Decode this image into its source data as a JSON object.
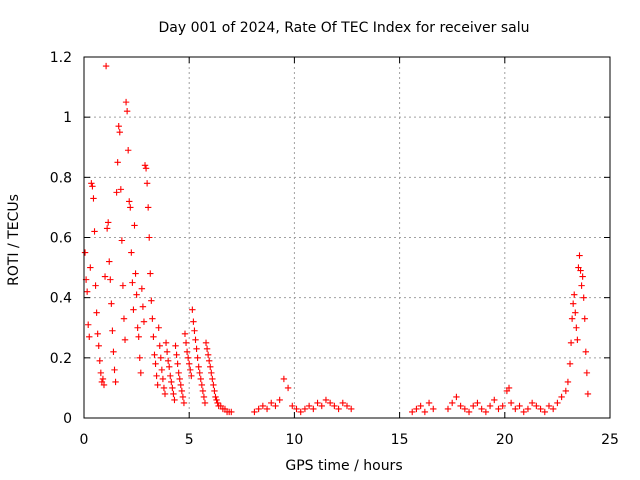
{
  "chart_data": {
    "type": "scatter",
    "title": "Day 001 of 2024, Rate Of TEC Index for receiver salu",
    "xlabel": "GPS time / hours",
    "ylabel": "ROTI / TECUs",
    "xlim": [
      0,
      25
    ],
    "ylim": [
      0,
      1.2
    ],
    "x_ticks": [
      0,
      5,
      10,
      15,
      20,
      25
    ],
    "x_tick_labels": [
      "0",
      "5",
      "10",
      "15",
      "20",
      "25"
    ],
    "y_ticks": [
      0,
      0.2,
      0.4,
      0.6,
      0.8,
      1.0,
      1.2
    ],
    "y_tick_labels": [
      "0",
      "0.2",
      "0.4",
      "0.6",
      "0.8",
      "1",
      "1.2"
    ],
    "grid": true,
    "marker": "+",
    "color": "#ff0000",
    "series": [
      {
        "name": "ROTI",
        "points": [
          [
            0.05,
            0.55
          ],
          [
            0.1,
            0.46
          ],
          [
            0.15,
            0.42
          ],
          [
            0.2,
            0.31
          ],
          [
            0.25,
            0.27
          ],
          [
            0.3,
            0.5
          ],
          [
            0.35,
            0.78
          ],
          [
            0.4,
            0.77
          ],
          [
            0.45,
            0.73
          ],
          [
            0.5,
            0.62
          ],
          [
            0.55,
            0.44
          ],
          [
            0.6,
            0.35
          ],
          [
            0.65,
            0.28
          ],
          [
            0.7,
            0.24
          ],
          [
            0.75,
            0.19
          ],
          [
            0.8,
            0.15
          ],
          [
            0.85,
            0.12
          ],
          [
            0.9,
            0.13
          ],
          [
            0.95,
            0.11
          ],
          [
            1.0,
            0.47
          ],
          [
            1.05,
            1.17
          ],
          [
            1.1,
            0.63
          ],
          [
            1.15,
            0.65
          ],
          [
            1.2,
            0.52
          ],
          [
            1.25,
            0.46
          ],
          [
            1.3,
            0.38
          ],
          [
            1.35,
            0.29
          ],
          [
            1.4,
            0.22
          ],
          [
            1.45,
            0.16
          ],
          [
            1.5,
            0.12
          ],
          [
            1.55,
            0.75
          ],
          [
            1.6,
            0.85
          ],
          [
            1.65,
            0.97
          ],
          [
            1.7,
            0.95
          ],
          [
            1.75,
            0.76
          ],
          [
            1.8,
            0.59
          ],
          [
            1.85,
            0.44
          ],
          [
            1.9,
            0.33
          ],
          [
            1.95,
            0.26
          ],
          [
            2.0,
            1.05
          ],
          [
            2.05,
            1.02
          ],
          [
            2.1,
            0.89
          ],
          [
            2.15,
            0.72
          ],
          [
            2.2,
            0.7
          ],
          [
            2.25,
            0.55
          ],
          [
            2.3,
            0.45
          ],
          [
            2.35,
            0.36
          ],
          [
            2.4,
            0.64
          ],
          [
            2.45,
            0.48
          ],
          [
            2.5,
            0.41
          ],
          [
            2.55,
            0.3
          ],
          [
            2.6,
            0.27
          ],
          [
            2.65,
            0.2
          ],
          [
            2.7,
            0.15
          ],
          [
            2.75,
            0.43
          ],
          [
            2.8,
            0.37
          ],
          [
            2.85,
            0.32
          ],
          [
            2.9,
            0.84
          ],
          [
            2.95,
            0.83
          ],
          [
            3.0,
            0.78
          ],
          [
            3.05,
            0.7
          ],
          [
            3.1,
            0.6
          ],
          [
            3.15,
            0.48
          ],
          [
            3.2,
            0.39
          ],
          [
            3.25,
            0.33
          ],
          [
            3.3,
            0.27
          ],
          [
            3.35,
            0.21
          ],
          [
            3.4,
            0.18
          ],
          [
            3.45,
            0.14
          ],
          [
            3.5,
            0.11
          ],
          [
            3.55,
            0.3
          ],
          [
            3.6,
            0.24
          ],
          [
            3.65,
            0.2
          ],
          [
            3.7,
            0.16
          ],
          [
            3.75,
            0.13
          ],
          [
            3.8,
            0.1
          ],
          [
            3.85,
            0.08
          ],
          [
            3.9,
            0.25
          ],
          [
            3.95,
            0.22
          ],
          [
            4.0,
            0.19
          ],
          [
            4.05,
            0.17
          ],
          [
            4.1,
            0.14
          ],
          [
            4.15,
            0.12
          ],
          [
            4.2,
            0.1
          ],
          [
            4.25,
            0.08
          ],
          [
            4.3,
            0.06
          ],
          [
            4.35,
            0.24
          ],
          [
            4.4,
            0.21
          ],
          [
            4.45,
            0.18
          ],
          [
            4.5,
            0.15
          ],
          [
            4.55,
            0.13
          ],
          [
            4.6,
            0.11
          ],
          [
            4.65,
            0.09
          ],
          [
            4.7,
            0.07
          ],
          [
            4.75,
            0.05
          ],
          [
            4.8,
            0.28
          ],
          [
            4.85,
            0.25
          ],
          [
            4.9,
            0.22
          ],
          [
            4.95,
            0.2
          ],
          [
            5.0,
            0.18
          ],
          [
            5.05,
            0.16
          ],
          [
            5.1,
            0.14
          ],
          [
            5.15,
            0.36
          ],
          [
            5.2,
            0.32
          ],
          [
            5.25,
            0.29
          ],
          [
            5.3,
            0.26
          ],
          [
            5.35,
            0.23
          ],
          [
            5.4,
            0.2
          ],
          [
            5.45,
            0.17
          ],
          [
            5.5,
            0.15
          ],
          [
            5.55,
            0.13
          ],
          [
            5.6,
            0.11
          ],
          [
            5.65,
            0.09
          ],
          [
            5.7,
            0.07
          ],
          [
            5.75,
            0.05
          ],
          [
            5.8,
            0.25
          ],
          [
            5.85,
            0.23
          ],
          [
            5.9,
            0.21
          ],
          [
            5.95,
            0.19
          ],
          [
            6.0,
            0.17
          ],
          [
            6.05,
            0.15
          ],
          [
            6.1,
            0.13
          ],
          [
            6.15,
            0.11
          ],
          [
            6.2,
            0.09
          ],
          [
            6.25,
            0.07
          ],
          [
            6.3,
            0.06
          ],
          [
            6.35,
            0.05
          ],
          [
            6.4,
            0.04
          ],
          [
            6.5,
            0.04
          ],
          [
            6.6,
            0.03
          ],
          [
            6.7,
            0.03
          ],
          [
            6.8,
            0.02
          ],
          [
            6.9,
            0.02
          ],
          [
            7.0,
            0.02
          ],
          [
            8.1,
            0.02
          ],
          [
            8.3,
            0.03
          ],
          [
            8.5,
            0.04
          ],
          [
            8.7,
            0.03
          ],
          [
            8.9,
            0.05
          ],
          [
            9.1,
            0.04
          ],
          [
            9.3,
            0.06
          ],
          [
            9.5,
            0.13
          ],
          [
            9.7,
            0.1
          ],
          [
            9.9,
            0.04
          ],
          [
            10.1,
            0.03
          ],
          [
            10.3,
            0.02
          ],
          [
            10.5,
            0.03
          ],
          [
            10.7,
            0.04
          ],
          [
            10.9,
            0.03
          ],
          [
            11.1,
            0.05
          ],
          [
            11.3,
            0.04
          ],
          [
            11.5,
            0.06
          ],
          [
            11.7,
            0.05
          ],
          [
            11.9,
            0.04
          ],
          [
            12.1,
            0.03
          ],
          [
            12.3,
            0.05
          ],
          [
            12.5,
            0.04
          ],
          [
            12.7,
            0.03
          ],
          [
            15.6,
            0.02
          ],
          [
            15.8,
            0.03
          ],
          [
            16.0,
            0.04
          ],
          [
            16.2,
            0.02
          ],
          [
            16.4,
            0.05
          ],
          [
            16.6,
            0.03
          ],
          [
            17.3,
            0.03
          ],
          [
            17.5,
            0.05
          ],
          [
            17.7,
            0.07
          ],
          [
            17.9,
            0.04
          ],
          [
            18.1,
            0.03
          ],
          [
            18.3,
            0.02
          ],
          [
            18.5,
            0.04
          ],
          [
            18.7,
            0.05
          ],
          [
            18.9,
            0.03
          ],
          [
            19.1,
            0.02
          ],
          [
            19.3,
            0.04
          ],
          [
            19.5,
            0.06
          ],
          [
            19.7,
            0.03
          ],
          [
            19.9,
            0.04
          ],
          [
            20.1,
            0.09
          ],
          [
            20.2,
            0.1
          ],
          [
            20.3,
            0.05
          ],
          [
            20.5,
            0.03
          ],
          [
            20.7,
            0.04
          ],
          [
            20.9,
            0.02
          ],
          [
            21.1,
            0.03
          ],
          [
            21.3,
            0.05
          ],
          [
            21.5,
            0.04
          ],
          [
            21.7,
            0.03
          ],
          [
            21.9,
            0.02
          ],
          [
            22.1,
            0.04
          ],
          [
            22.3,
            0.03
          ],
          [
            22.5,
            0.05
          ],
          [
            22.7,
            0.07
          ],
          [
            22.9,
            0.09
          ],
          [
            23.0,
            0.12
          ],
          [
            23.1,
            0.18
          ],
          [
            23.15,
            0.25
          ],
          [
            23.2,
            0.33
          ],
          [
            23.25,
            0.38
          ],
          [
            23.3,
            0.41
          ],
          [
            23.35,
            0.35
          ],
          [
            23.4,
            0.3
          ],
          [
            23.45,
            0.26
          ],
          [
            23.5,
            0.5
          ],
          [
            23.55,
            0.54
          ],
          [
            23.6,
            0.49
          ],
          [
            23.65,
            0.44
          ],
          [
            23.7,
            0.47
          ],
          [
            23.75,
            0.4
          ],
          [
            23.8,
            0.33
          ],
          [
            23.85,
            0.22
          ],
          [
            23.9,
            0.15
          ],
          [
            23.95,
            0.08
          ]
        ]
      }
    ]
  }
}
